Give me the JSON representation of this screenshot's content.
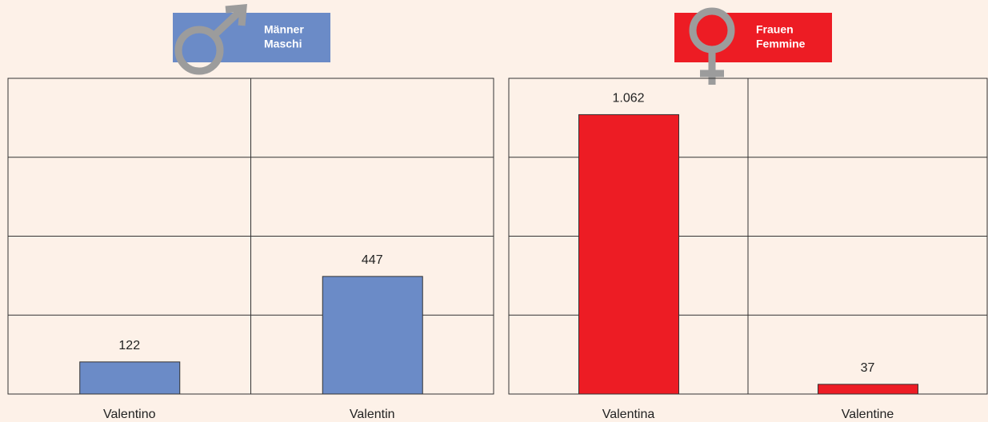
{
  "chart_data": [
    {
      "type": "bar",
      "title": [
        "Männer",
        "Maschi"
      ],
      "categories": [
        "Valentino",
        "Valentin"
      ],
      "values": [
        122,
        447
      ],
      "color": "#6b8bc7",
      "ylim": [
        0,
        1200
      ],
      "yticks": [
        0,
        300,
        600,
        900,
        1200
      ],
      "grid": true
    },
    {
      "type": "bar",
      "title": [
        "Frauen",
        "Femmine"
      ],
      "categories": [
        "Valentina",
        "Valentine"
      ],
      "values": [
        1062,
        37
      ],
      "value_labels": [
        "1.062",
        "37"
      ],
      "color": "#ed1c24",
      "ylim": [
        0,
        1200
      ],
      "yticks": [
        0,
        300,
        600,
        900,
        1200
      ],
      "grid": true
    }
  ]
}
